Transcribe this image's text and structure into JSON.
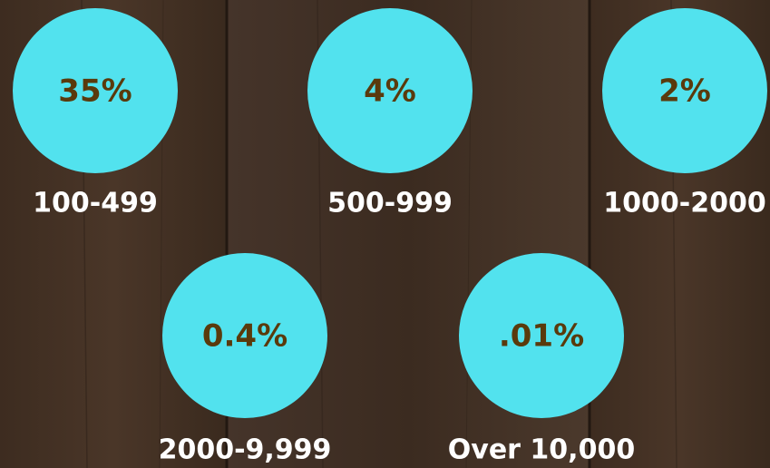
{
  "items": [
    {
      "value": "35%",
      "label": "100-499"
    },
    {
      "value": "4%",
      "label": "500-999"
    },
    {
      "value": "2%",
      "label": "1000-2000"
    },
    {
      "value": "0.4%",
      "label": "2000-9,999"
    },
    {
      "value": ".01%",
      "label": "Over 10,000"
    }
  ]
}
